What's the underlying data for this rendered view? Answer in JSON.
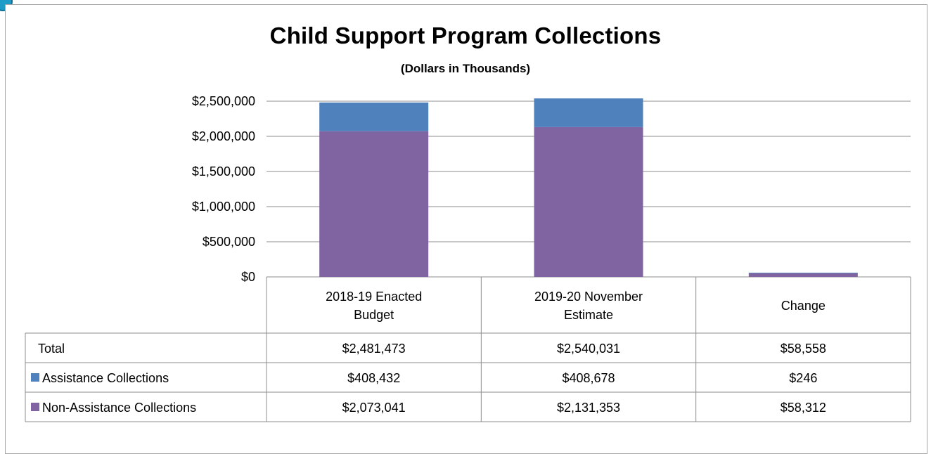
{
  "chart_data": {
    "type": "bar",
    "stacked": true,
    "title": "Child Support Program Collections",
    "subtitle": "(Dollars in Thousands)",
    "categories": [
      "2018-19 Enacted Budget",
      "2019-20 November Estimate",
      "Change"
    ],
    "category_lines": [
      [
        "2018-19 Enacted",
        "Budget"
      ],
      [
        "2019-20 November",
        "Estimate"
      ],
      [
        "Change"
      ]
    ],
    "series": [
      {
        "name": "Non-Assistance Collections",
        "values": [
          2073041,
          2131353,
          58312
        ],
        "color": "#8064a2"
      },
      {
        "name": "Assistance Collections",
        "values": [
          408432,
          408678,
          246
        ],
        "color": "#4f81bd"
      }
    ],
    "ylim": [
      0,
      2500000
    ],
    "yticks": [
      0,
      500000,
      1000000,
      1500000,
      2000000,
      2500000
    ],
    "ytick_labels": [
      "$0",
      "$500,000",
      "$1,000,000",
      "$1,500,000",
      "$2,000,000",
      "$2,500,000"
    ],
    "grid": true,
    "data_table": {
      "rows": [
        {
          "label": "Total",
          "values": [
            "$2,481,473",
            "$2,540,031",
            "$58,558"
          ],
          "color": ""
        },
        {
          "label": "Assistance Collections",
          "values": [
            "$408,432",
            "$408,678",
            "$246"
          ],
          "color": "#4f81bd"
        },
        {
          "label": "Non-Assistance Collections",
          "values": [
            "$2,073,041",
            "$2,131,353",
            "$58,312"
          ],
          "color": "#8064a2"
        }
      ]
    }
  }
}
